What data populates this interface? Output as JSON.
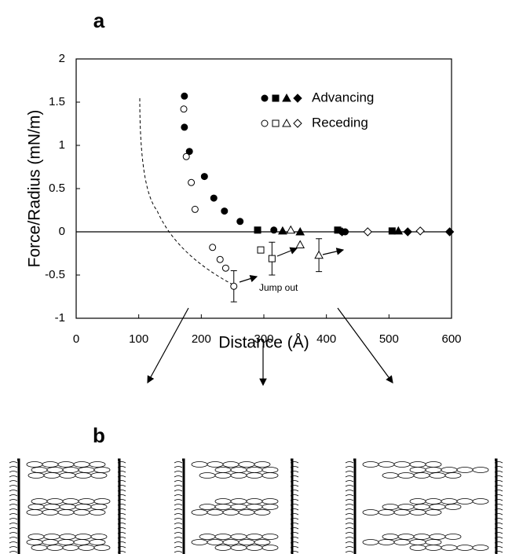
{
  "chart_data": {
    "type": "scatter",
    "panel_labels": [
      "a",
      "b"
    ],
    "xlabel": "Distance (Å)",
    "ylabel": "Force/Radius (mN/m)",
    "xlim": [
      0,
      600
    ],
    "ylim": [
      -1,
      2
    ],
    "xticks": [
      0,
      100,
      200,
      300,
      400,
      500,
      600
    ],
    "yticks": [
      -1,
      -0.5,
      0,
      0.5,
      1,
      1.5,
      2
    ],
    "groups": [
      "Advancing",
      "Receding"
    ],
    "annotation": "Jump out",
    "series": [
      {
        "group": 0,
        "marker": "circle",
        "filled": true,
        "color": "#000000",
        "x": [
          173,
          173,
          181,
          205,
          220,
          237,
          262,
          316,
          425,
          430
        ],
        "values": [
          1.57,
          1.21,
          0.93,
          0.64,
          0.39,
          0.24,
          0.12,
          0.02,
          0,
          0
        ]
      },
      {
        "group": 0,
        "marker": "square",
        "filled": true,
        "color": "#000000",
        "x": [
          290,
          418,
          505
        ],
        "values": [
          0.02,
          0.02,
          0.01
        ]
      },
      {
        "group": 0,
        "marker": "triangle",
        "filled": true,
        "color": "#000000",
        "x": [
          330,
          358,
          515
        ],
        "values": [
          0.01,
          0,
          0.01
        ]
      },
      {
        "group": 0,
        "marker": "diamond",
        "filled": true,
        "color": "#000000",
        "x": [
          425,
          530,
          597
        ],
        "values": [
          0,
          0,
          0
        ]
      },
      {
        "group": 1,
        "marker": "circle",
        "filled": false,
        "color": "#000000",
        "x": [
          172,
          176,
          184,
          190,
          218,
          230,
          239,
          252
        ],
        "values": [
          1.42,
          0.87,
          0.57,
          0.26,
          -0.18,
          -0.32,
          -0.42,
          -0.63
        ],
        "errors": [
          null,
          null,
          null,
          null,
          null,
          null,
          null,
          0.18
        ]
      },
      {
        "group": 1,
        "marker": "square",
        "filled": false,
        "color": "#000000",
        "x": [
          295,
          313
        ],
        "values": [
          -0.21,
          -0.31
        ],
        "errors": [
          null,
          0.19
        ]
      },
      {
        "group": 1,
        "marker": "triangle",
        "filled": false,
        "color": "#000000",
        "x": [
          343,
          358,
          388
        ],
        "values": [
          0.02,
          -0.15,
          -0.27
        ],
        "errors": [
          null,
          null,
          0.19
        ]
      },
      {
        "group": 1,
        "marker": "diamond",
        "filled": false,
        "color": "#000000",
        "x": [
          466,
          550
        ],
        "values": [
          0,
          0.01
        ]
      }
    ]
  }
}
